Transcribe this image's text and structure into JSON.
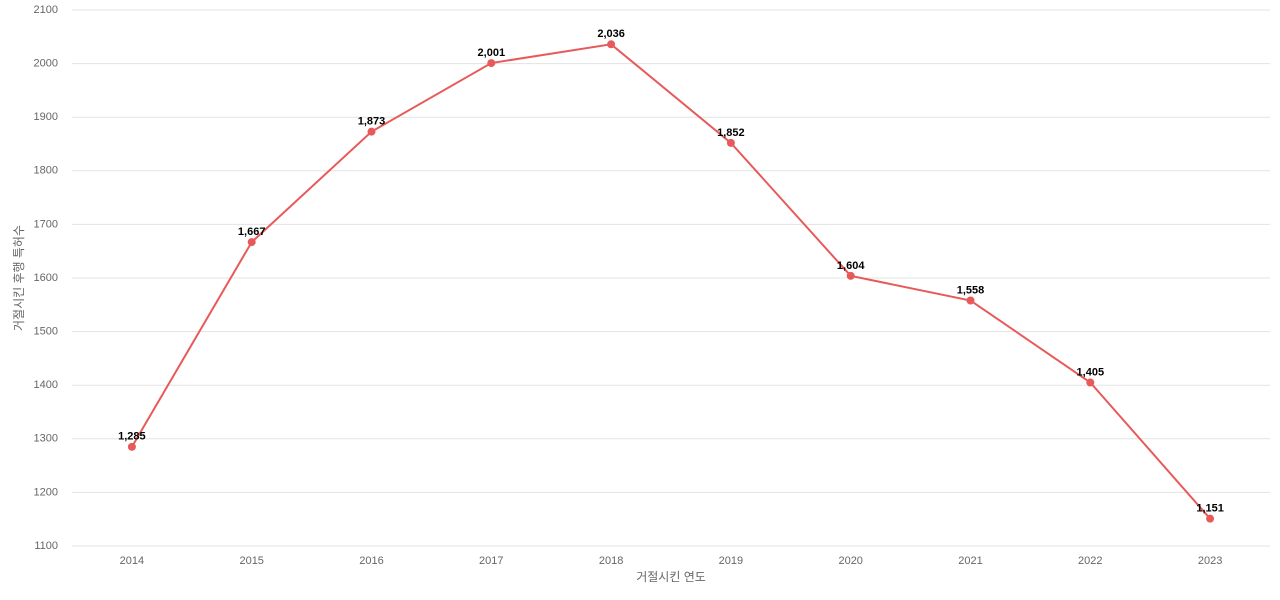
{
  "chart_data": {
    "type": "line",
    "x_label": "거절시킨 연도",
    "y_label": "거절시킨 후행 특허수",
    "categories": [
      "2014",
      "2015",
      "2016",
      "2017",
      "2018",
      "2019",
      "2020",
      "2021",
      "2022",
      "2023"
    ],
    "values": [
      1285,
      1667,
      1873,
      2001,
      2036,
      1852,
      1604,
      1558,
      1405,
      1151
    ],
    "value_labels": [
      "1,285",
      "1,667",
      "1,873",
      "2,001",
      "2,036",
      "1,852",
      "1,604",
      "1,558",
      "1,405",
      "1,151"
    ],
    "color": "#e85a5a",
    "ylim": [
      1100,
      2100
    ],
    "yticks": [
      1100,
      1200,
      1300,
      1400,
      1500,
      1600,
      1700,
      1800,
      1900,
      2000,
      2100
    ],
    "grid": true
  }
}
